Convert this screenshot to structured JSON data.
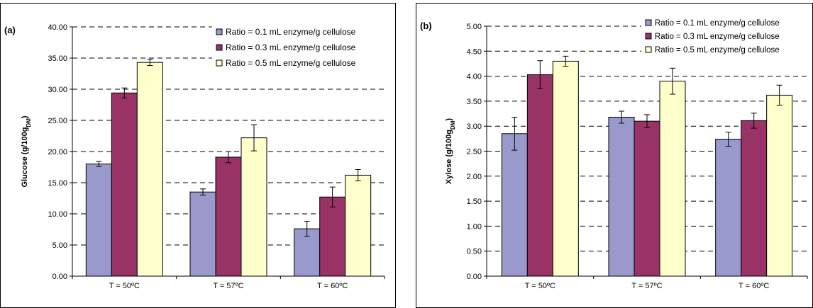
{
  "chart_data": [
    {
      "type": "bar",
      "panel_label": "(a)",
      "ylabel": "Glucose (g/100g",
      "ylabel_sub": "DM",
      "ylabel_end": ")",
      "ylim": [
        0,
        40
      ],
      "ytick_step": 5,
      "ytick_labels": [
        "0.00",
        "5.00",
        "10.00",
        "15.00",
        "20.00",
        "25.00",
        "30.00",
        "35.00",
        "40.00"
      ],
      "categories": [
        "T = 50ºC",
        "T = 57ºC",
        "T = 60ºC"
      ],
      "grid": "dashed horizontal",
      "legend_position": "top-right",
      "series": [
        {
          "name": "Ratio = 0.1 mL enzyme/g cellulose",
          "color": "#9999cc",
          "values": [
            18.0,
            13.5,
            7.6
          ],
          "errors": [
            0.4,
            0.5,
            1.2
          ]
        },
        {
          "name": "Ratio = 0.3 mL enzyme/g cellulose",
          "color": "#993366",
          "values": [
            29.4,
            19.1,
            12.7
          ],
          "errors": [
            0.8,
            0.9,
            1.6
          ]
        },
        {
          "name": "Ratio = 0.5 mL enzyme/g cellulose",
          "color": "#ffffcc",
          "values": [
            34.3,
            22.2,
            16.2
          ],
          "errors": [
            0.5,
            2.1,
            0.9
          ]
        }
      ]
    },
    {
      "type": "bar",
      "panel_label": "(b)",
      "ylabel": "Xylose (g/100g",
      "ylabel_sub": "DM",
      "ylabel_end": ")",
      "ylim": [
        0,
        5
      ],
      "ytick_step": 0.5,
      "ytick_labels": [
        "0.00",
        "0.50",
        "1.00",
        "1.50",
        "2.00",
        "2.50",
        "3.00",
        "3.50",
        "4.00",
        "4.50",
        "5.00"
      ],
      "categories": [
        "T = 50ºC",
        "T = 57ºC",
        "T = 60ºC"
      ],
      "grid": "dashed horizontal",
      "legend_position": "top-right",
      "series": [
        {
          "name": "Ratio = 0.1 mL enzyme/g cellulose",
          "color": "#9999cc",
          "values": [
            2.85,
            3.18,
            2.74
          ],
          "errors": [
            0.33,
            0.12,
            0.14
          ]
        },
        {
          "name": "Ratio = 0.3 mL enzyme/g cellulose",
          "color": "#993366",
          "values": [
            4.03,
            3.1,
            3.11
          ],
          "errors": [
            0.28,
            0.13,
            0.15
          ]
        },
        {
          "name": "Ratio = 0.5 mL enzyme/g cellulose",
          "color": "#ffffcc",
          "values": [
            4.3,
            3.9,
            3.62
          ],
          "errors": [
            0.1,
            0.26,
            0.2
          ]
        }
      ]
    }
  ]
}
